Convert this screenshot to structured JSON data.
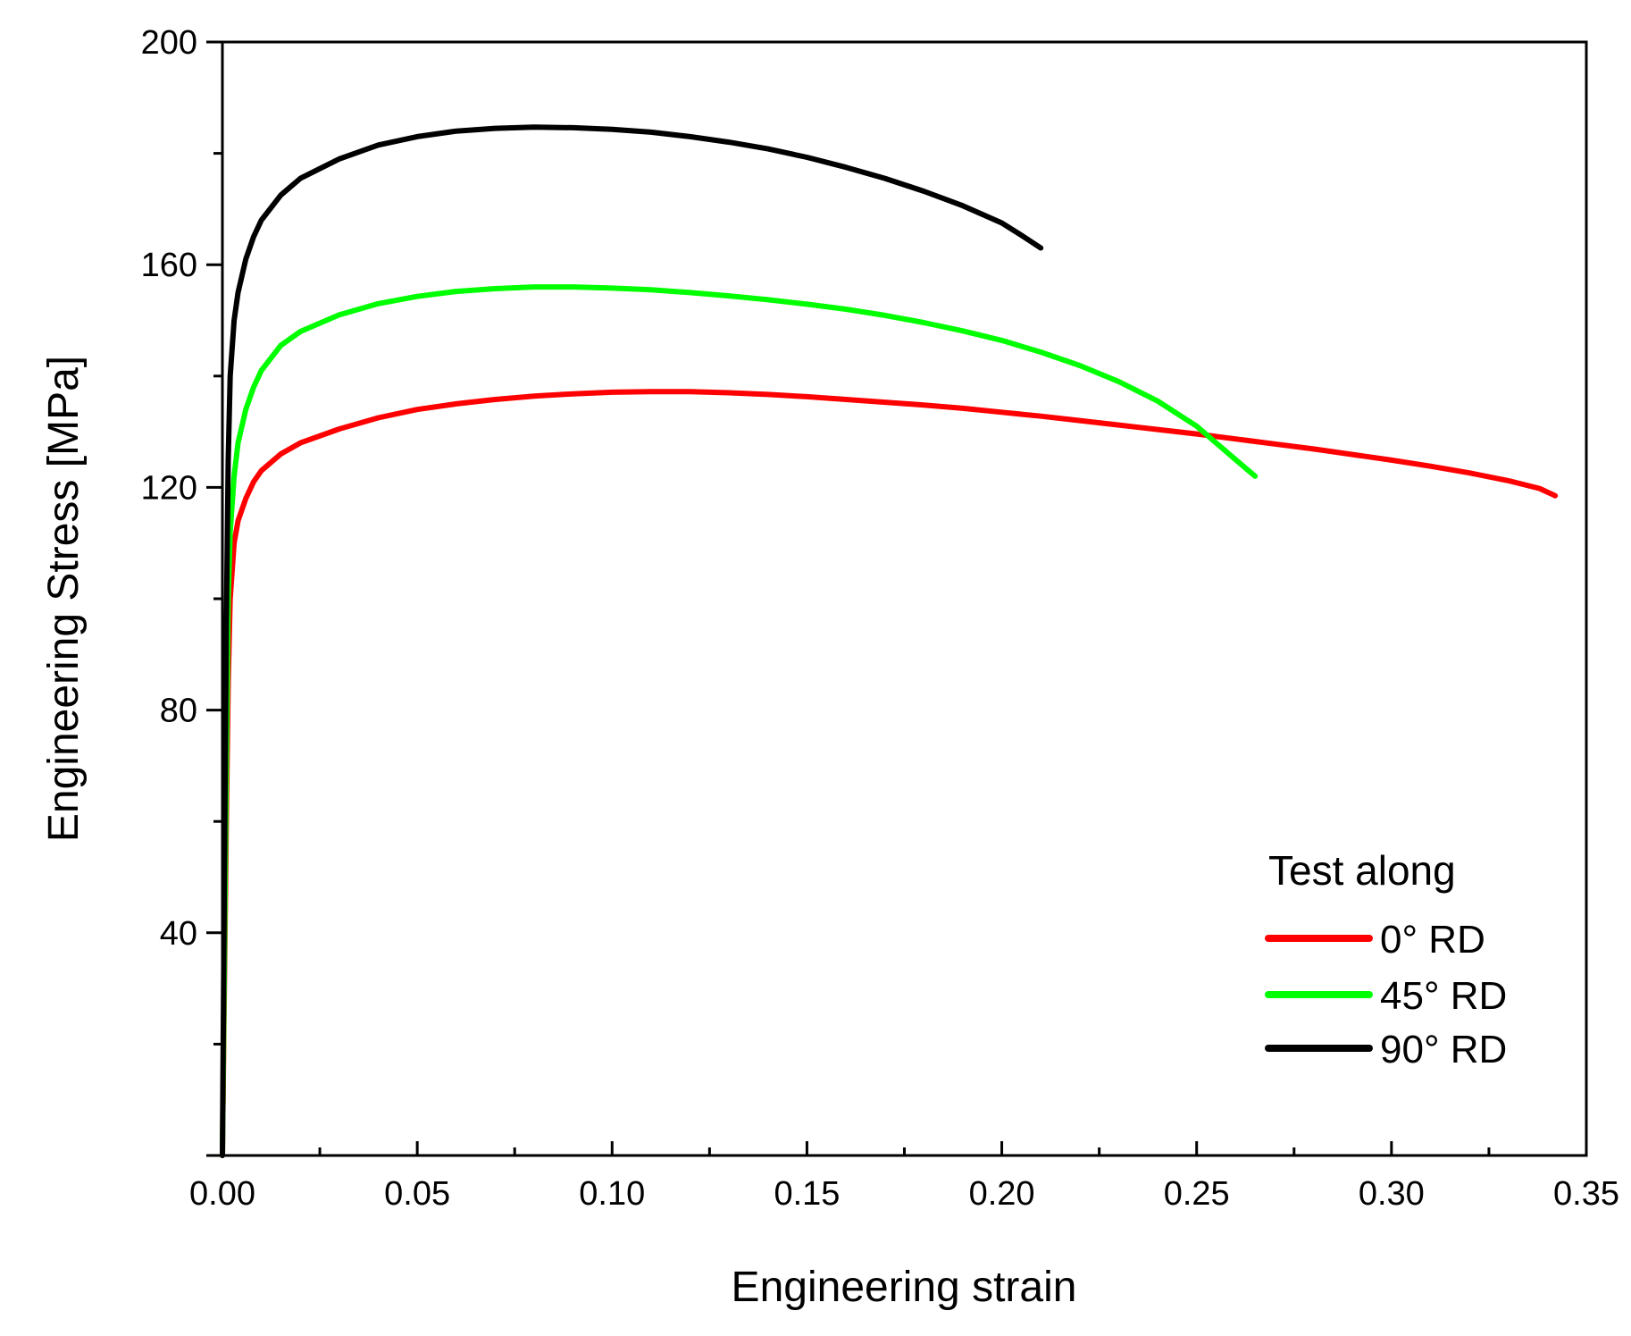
{
  "chart_data": {
    "type": "line",
    "title": "",
    "xlabel": "Engineering strain",
    "ylabel": "Engineering Stress  [MPa]",
    "xlim": [
      0,
      0.35
    ],
    "ylim": [
      0,
      200
    ],
    "x_ticks": [
      "0.00",
      "0.05",
      "0.10",
      "0.15",
      "0.20",
      "0.25",
      "0.30",
      "0.35"
    ],
    "y_ticks": [
      "40",
      "80",
      "120",
      "160",
      "200"
    ],
    "legend": {
      "title": "Test along",
      "placement": "lower-right"
    },
    "series": [
      {
        "name": "0° RD",
        "color": "#ff0000",
        "x": [
          0.0,
          0.0005,
          0.001,
          0.0015,
          0.002,
          0.003,
          0.004,
          0.006,
          0.008,
          0.01,
          0.015,
          0.02,
          0.03,
          0.04,
          0.05,
          0.06,
          0.07,
          0.08,
          0.09,
          0.1,
          0.11,
          0.12,
          0.13,
          0.14,
          0.15,
          0.16,
          0.17,
          0.18,
          0.19,
          0.2,
          0.21,
          0.22,
          0.23,
          0.24,
          0.25,
          0.26,
          0.27,
          0.28,
          0.29,
          0.3,
          0.31,
          0.32,
          0.33,
          0.338,
          0.342
        ],
        "y": [
          0,
          30,
          60,
          85,
          100,
          110,
          114,
          118,
          121,
          123,
          126,
          128,
          130.5,
          132.5,
          134,
          135,
          135.8,
          136.4,
          136.8,
          137.1,
          137.2,
          137.2,
          137.0,
          136.7,
          136.3,
          135.8,
          135.3,
          134.8,
          134.2,
          133.5,
          132.8,
          132.0,
          131.2,
          130.4,
          129.6,
          128.7,
          127.8,
          126.9,
          125.9,
          124.9,
          123.8,
          122.6,
          121.2,
          119.8,
          118.5
        ]
      },
      {
        "name": "45° RD",
        "color": "#00ff00",
        "x": [
          0.0,
          0.0005,
          0.001,
          0.0015,
          0.002,
          0.003,
          0.004,
          0.006,
          0.008,
          0.01,
          0.015,
          0.02,
          0.03,
          0.04,
          0.05,
          0.06,
          0.07,
          0.08,
          0.09,
          0.1,
          0.11,
          0.12,
          0.13,
          0.14,
          0.15,
          0.16,
          0.17,
          0.18,
          0.19,
          0.2,
          0.21,
          0.22,
          0.23,
          0.24,
          0.25,
          0.255,
          0.26,
          0.265
        ],
        "y": [
          0,
          35,
          70,
          100,
          112,
          122,
          128,
          134,
          138,
          141,
          145.5,
          148,
          151,
          153,
          154.3,
          155.2,
          155.7,
          156.0,
          156.0,
          155.8,
          155.5,
          155.0,
          154.4,
          153.7,
          152.9,
          152.0,
          150.9,
          149.6,
          148.1,
          146.4,
          144.3,
          141.9,
          139.0,
          135.5,
          131.0,
          128.0,
          125.0,
          122.0
        ]
      },
      {
        "name": "90° RD",
        "color": "#000000",
        "x": [
          0.0,
          0.0005,
          0.001,
          0.0015,
          0.002,
          0.003,
          0.004,
          0.006,
          0.008,
          0.01,
          0.015,
          0.02,
          0.03,
          0.04,
          0.05,
          0.06,
          0.07,
          0.08,
          0.09,
          0.1,
          0.11,
          0.12,
          0.13,
          0.14,
          0.15,
          0.16,
          0.17,
          0.18,
          0.19,
          0.2,
          0.205,
          0.21
        ],
        "y": [
          0,
          50,
          95,
          125,
          140,
          150,
          155,
          161,
          165,
          168,
          172.5,
          175.5,
          179,
          181.5,
          183,
          184,
          184.5,
          184.7,
          184.6,
          184.3,
          183.8,
          183.0,
          182.0,
          180.8,
          179.3,
          177.5,
          175.5,
          173.2,
          170.6,
          167.5,
          165.3,
          163.0
        ]
      }
    ]
  }
}
